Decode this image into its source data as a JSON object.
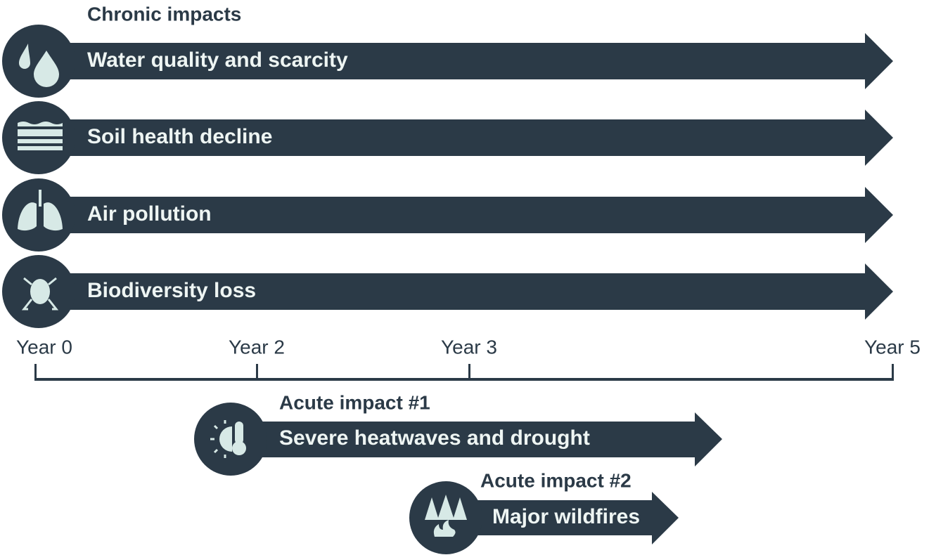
{
  "title": "Chronic impacts",
  "chronic_impacts": [
    {
      "label": "Water quality and scarcity"
    },
    {
      "label": "Soil health decline"
    },
    {
      "label": "Air pollution"
    },
    {
      "label": "Biodiversity loss"
    }
  ],
  "timeline": [
    "Year 0",
    "Year 2",
    "Year 3",
    "Year 5"
  ],
  "acute_impacts": [
    {
      "heading": "Acute impact #1",
      "label": "Severe heatwaves and drought"
    },
    {
      "heading": "Acute impact #2",
      "label": "Major wildfires"
    }
  ]
}
